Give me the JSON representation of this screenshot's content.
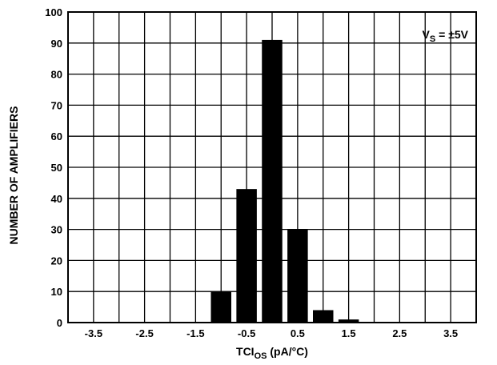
{
  "chart_data": {
    "type": "bar",
    "title": "",
    "annotation": {
      "main": "V",
      "sub": "S",
      "rest": " = ±5V"
    },
    "xlabel": {
      "main": "TCI",
      "sub": "OS",
      "rest": " (pA/°C)"
    },
    "ylabel": "NUMBER OF AMPLIFIERS",
    "xlim": [
      -4,
      4
    ],
    "ylim": [
      0,
      100
    ],
    "x_ticks": [
      -3.5,
      -2.5,
      -1.5,
      -0.5,
      0.5,
      1.5,
      2.5,
      3.5
    ],
    "x_tick_labels": [
      "-3.5",
      "-2.5",
      "-1.5",
      "-0.5",
      "0.5",
      "1.5",
      "2.5",
      "3.5"
    ],
    "y_ticks": [
      0,
      10,
      20,
      30,
      40,
      50,
      60,
      70,
      80,
      90,
      100
    ],
    "y_tick_labels": [
      "0",
      "10",
      "20",
      "30",
      "40",
      "50",
      "60",
      "70",
      "80",
      "90",
      "100"
    ],
    "bar_width": 0.4,
    "x": [
      -1.0,
      -0.5,
      0.0,
      0.5,
      1.0,
      1.5
    ],
    "values": [
      10,
      43,
      91,
      30,
      4,
      1
    ],
    "grid": true,
    "colors": {
      "bar": "#000000",
      "grid": "#000000",
      "background": "#ffffff"
    }
  }
}
